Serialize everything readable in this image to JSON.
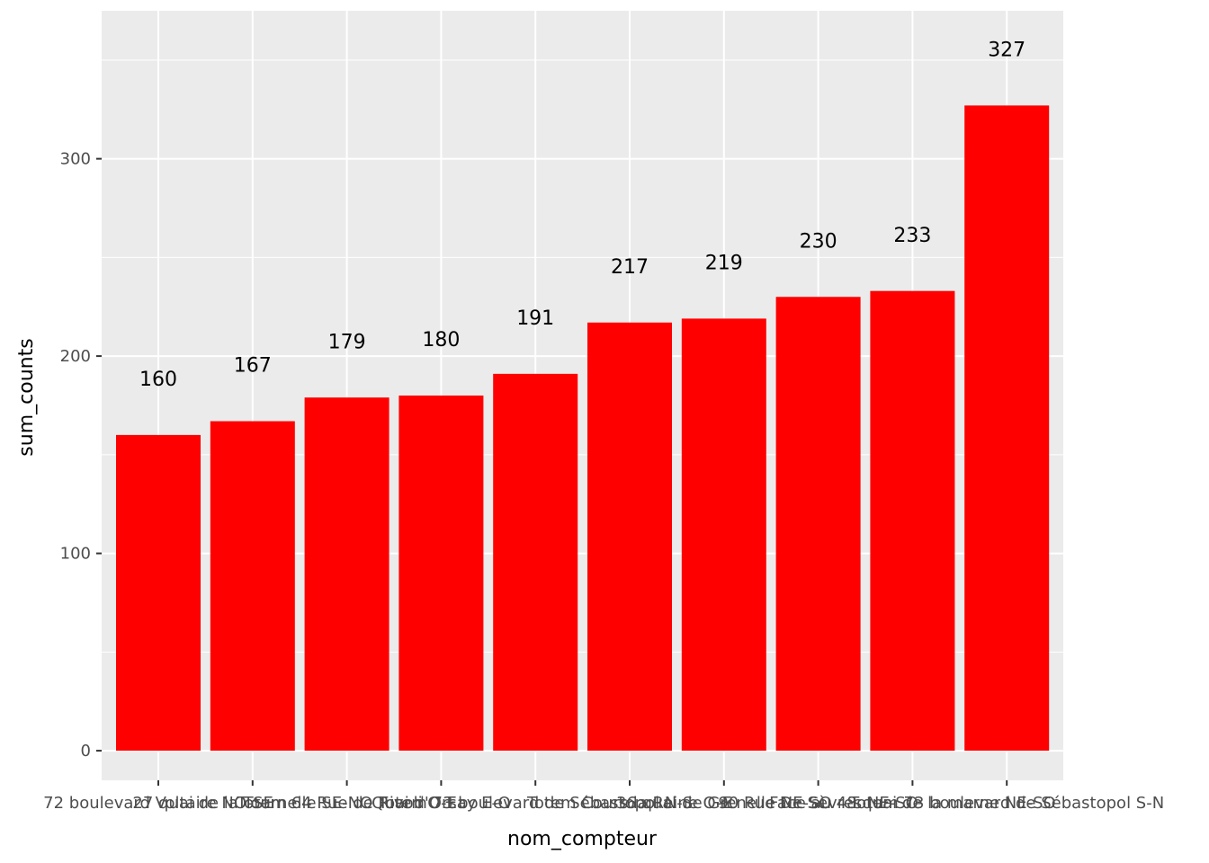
{
  "chart_data": {
    "type": "bar",
    "categories": [
      "72 boulevard Voltaire NO-SE",
      "27 quai de la Tournelle SE-NO",
      "Totem 64 Rue de Rivoli O-E",
      "Quai d'Orsay E-O",
      "Totem 73 boulevard de Sébastopol N-S",
      "Totem Cours la Reine O-E",
      "36 quai de Grenelle NE-SO",
      "90 Rue De Sèvres NE-SO",
      "Face au 48 quai de la marne NE-SO",
      "Totem 73 boulevard de Sébastopol S-N"
    ],
    "values": [
      160,
      167,
      179,
      180,
      191,
      217,
      219,
      230,
      233,
      327
    ],
    "data_labels": [
      "160",
      "167",
      "179",
      "180",
      "191",
      "217",
      "219",
      "230",
      "233",
      "327"
    ],
    "xlabel": "nom_compteur",
    "ylabel": "sum_counts",
    "ylim": [
      -15,
      375
    ],
    "yticks": [
      0,
      100,
      200,
      300
    ],
    "ytick_labels": [
      "0",
      "100",
      "200",
      "300"
    ],
    "grid": true,
    "colors": {
      "bar": "#ff0000",
      "panel_background": "#ebebeb",
      "grid": "#ffffff"
    }
  }
}
